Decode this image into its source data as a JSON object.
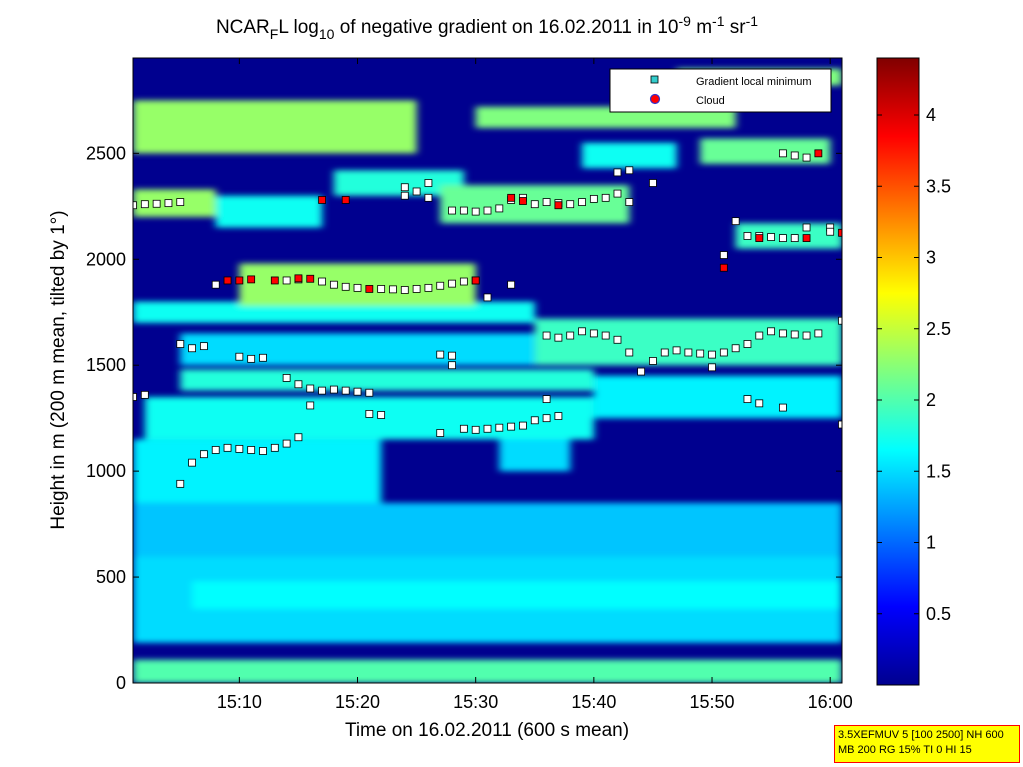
{
  "chart_data": {
    "type": "heatmap",
    "title": {
      "pre": "NCAR",
      "sub1": "F",
      "mid1": "L log",
      "sub2": "10",
      "mid2": " of negative gradient on 16.02.2011 in 10",
      "sup1": "-9",
      "mid3": " m",
      "sup2": "-1",
      "mid4": " sr",
      "sup3": "-1"
    },
    "xlabel": "Time on 16.02.2011 (600 s mean)",
    "ylabel": "Height in m (200 m mean, tilted by 1°)",
    "xlim": [
      "15:01",
      "16:01"
    ],
    "ylim": [
      0,
      2950
    ],
    "x_ticks": [
      "15:10",
      "15:20",
      "15:30",
      "15:40",
      "15:50",
      "16:00"
    ],
    "y_ticks": [
      "0",
      "500",
      "1000",
      "1500",
      "2000",
      "2500"
    ],
    "colorbar": {
      "range": [
        0,
        4.4
      ],
      "ticks": [
        "0.5",
        "1",
        "1.5",
        "2",
        "2.5",
        "3",
        "3.5",
        "4"
      ],
      "colormap": "jet"
    },
    "colors": {
      "background_field": "#00008f",
      "gradient_marker_fill": "#ffffff",
      "cloud_marker_fill": "#ff0000",
      "marker_edge": "#000000"
    },
    "legend": {
      "placement": "top-right",
      "entries": [
        {
          "label": "Gradient local minimum",
          "marker": "square",
          "color": "#33cccc"
        },
        {
          "label": "Cloud",
          "marker": "circle",
          "color": "#ff0000"
        }
      ]
    },
    "field_bands": [
      {
        "x": [
          "15:01",
          "16:01"
        ],
        "y": [
          0,
          110
        ],
        "level": 2.0
      },
      {
        "x": [
          "15:01",
          "16:01"
        ],
        "y": [
          190,
          600
        ],
        "level": 1.5
      },
      {
        "x": [
          "15:06",
          "16:01"
        ],
        "y": [
          350,
          480
        ],
        "level": 1.65
      },
      {
        "x": [
          "15:01",
          "16:01"
        ],
        "y": [
          600,
          850
        ],
        "level": 1.4
      },
      {
        "x": [
          "15:01",
          "15:22"
        ],
        "y": [
          850,
          1150
        ],
        "level": 1.6
      },
      {
        "x": [
          "15:32",
          "15:38"
        ],
        "y": [
          1000,
          1250
        ],
        "level": 1.5
      },
      {
        "x": [
          "15:02",
          "15:40"
        ],
        "y": [
          1150,
          1350
        ],
        "level": 1.7
      },
      {
        "x": [
          "15:05",
          "15:40"
        ],
        "y": [
          1380,
          1480
        ],
        "level": 1.8
      },
      {
        "x": [
          "15:40",
          "16:01"
        ],
        "y": [
          1250,
          1450
        ],
        "level": 1.6
      },
      {
        "x": [
          "15:05",
          "15:35"
        ],
        "y": [
          1500,
          1650
        ],
        "level": 1.5
      },
      {
        "x": [
          "15:35",
          "16:01"
        ],
        "y": [
          1500,
          1720
        ],
        "level": 1.9
      },
      {
        "x": [
          "15:01",
          "15:35"
        ],
        "y": [
          1700,
          1800
        ],
        "level": 1.7
      },
      {
        "x": [
          "15:10",
          "15:30"
        ],
        "y": [
          1780,
          1980
        ],
        "level": 2.3
      },
      {
        "x": [
          "15:01",
          "15:08"
        ],
        "y": [
          2200,
          2330
        ],
        "level": 2.3
      },
      {
        "x": [
          "15:08",
          "15:17"
        ],
        "y": [
          2150,
          2300
        ],
        "level": 1.7
      },
      {
        "x": [
          "15:18",
          "15:29"
        ],
        "y": [
          2300,
          2420
        ],
        "level": 1.8
      },
      {
        "x": [
          "15:27",
          "15:43"
        ],
        "y": [
          2170,
          2350
        ],
        "level": 2.1
      },
      {
        "x": [
          "15:52",
          "16:01"
        ],
        "y": [
          2050,
          2170
        ],
        "level": 1.9
      },
      {
        "x": [
          "15:01",
          "15:25"
        ],
        "y": [
          2500,
          2750
        ],
        "level": 2.3
      },
      {
        "x": [
          "15:30",
          "15:52"
        ],
        "y": [
          2620,
          2720
        ],
        "level": 2.2
      },
      {
        "x": [
          "15:39",
          "15:47"
        ],
        "y": [
          2430,
          2550
        ],
        "level": 1.7
      },
      {
        "x": [
          "15:49",
          "16:00"
        ],
        "y": [
          2450,
          2570
        ],
        "level": 2.1
      },
      {
        "x": [
          "15:47",
          "16:01"
        ],
        "y": [
          2820,
          2900
        ],
        "level": 2.2
      }
    ],
    "gradient_minimum_points": [
      {
        "x": "15:01",
        "y": 2255
      },
      {
        "x": "15:02",
        "y": 2260
      },
      {
        "x": "15:03",
        "y": 2262
      },
      {
        "x": "15:04",
        "y": 2265
      },
      {
        "x": "15:05",
        "y": 2270
      },
      {
        "x": "15:01",
        "y": 1350
      },
      {
        "x": "15:02",
        "y": 1360
      },
      {
        "x": "15:05",
        "y": 1600
      },
      {
        "x": "15:06",
        "y": 1580
      },
      {
        "x": "15:07",
        "y": 1590
      },
      {
        "x": "15:05",
        "y": 940
      },
      {
        "x": "15:06",
        "y": 1040
      },
      {
        "x": "15:07",
        "y": 1080
      },
      {
        "x": "15:08",
        "y": 1100
      },
      {
        "x": "15:09",
        "y": 1110
      },
      {
        "x": "15:10",
        "y": 1105
      },
      {
        "x": "15:11",
        "y": 1100
      },
      {
        "x": "15:12",
        "y": 1095
      },
      {
        "x": "15:13",
        "y": 1110
      },
      {
        "x": "15:14",
        "y": 1130
      },
      {
        "x": "15:15",
        "y": 1160
      },
      {
        "x": "15:08",
        "y": 1880
      },
      {
        "x": "15:10",
        "y": 1540
      },
      {
        "x": "15:11",
        "y": 1530
      },
      {
        "x": "15:12",
        "y": 1535
      },
      {
        "x": "15:14",
        "y": 1440
      },
      {
        "x": "15:15",
        "y": 1410
      },
      {
        "x": "15:16",
        "y": 1390
      },
      {
        "x": "15:17",
        "y": 1380
      },
      {
        "x": "15:18",
        "y": 1385
      },
      {
        "x": "15:19",
        "y": 1380
      },
      {
        "x": "15:20",
        "y": 1375
      },
      {
        "x": "15:21",
        "y": 1370
      },
      {
        "x": "15:16",
        "y": 1310
      },
      {
        "x": "15:21",
        "y": 1270
      },
      {
        "x": "15:22",
        "y": 1265
      },
      {
        "x": "15:14",
        "y": 1900
      },
      {
        "x": "15:15",
        "y": 1905
      },
      {
        "x": "15:17",
        "y": 1895
      },
      {
        "x": "15:18",
        "y": 1880
      },
      {
        "x": "15:19",
        "y": 1870
      },
      {
        "x": "15:20",
        "y": 1865
      },
      {
        "x": "15:22",
        "y": 1860
      },
      {
        "x": "15:23",
        "y": 1858
      },
      {
        "x": "15:24",
        "y": 1855
      },
      {
        "x": "15:25",
        "y": 1860
      },
      {
        "x": "15:26",
        "y": 1865
      },
      {
        "x": "15:27",
        "y": 1875
      },
      {
        "x": "15:28",
        "y": 1885
      },
      {
        "x": "15:29",
        "y": 1895
      },
      {
        "x": "15:30",
        "y": 1900
      },
      {
        "x": "15:31",
        "y": 1820
      },
      {
        "x": "15:33",
        "y": 1880
      },
      {
        "x": "15:27",
        "y": 1550
      },
      {
        "x": "15:28",
        "y": 1545
      },
      {
        "x": "15:28",
        "y": 1500
      },
      {
        "x": "15:27",
        "y": 1180
      },
      {
        "x": "15:29",
        "y": 1200
      },
      {
        "x": "15:30",
        "y": 1195
      },
      {
        "x": "15:31",
        "y": 1200
      },
      {
        "x": "15:32",
        "y": 1205
      },
      {
        "x": "15:33",
        "y": 1210
      },
      {
        "x": "15:34",
        "y": 1215
      },
      {
        "x": "15:35",
        "y": 1240
      },
      {
        "x": "15:36",
        "y": 1250
      },
      {
        "x": "15:37",
        "y": 1260
      },
      {
        "x": "15:36",
        "y": 1340
      },
      {
        "x": "15:36",
        "y": 1640
      },
      {
        "x": "15:37",
        "y": 1630
      },
      {
        "x": "15:38",
        "y": 1640
      },
      {
        "x": "15:39",
        "y": 1660
      },
      {
        "x": "15:40",
        "y": 1650
      },
      {
        "x": "15:41",
        "y": 1640
      },
      {
        "x": "15:42",
        "y": 1620
      },
      {
        "x": "15:43",
        "y": 1560
      },
      {
        "x": "15:44",
        "y": 1470
      },
      {
        "x": "15:45",
        "y": 1520
      },
      {
        "x": "15:46",
        "y": 1560
      },
      {
        "x": "15:47",
        "y": 1570
      },
      {
        "x": "15:48",
        "y": 1560
      },
      {
        "x": "15:49",
        "y": 1555
      },
      {
        "x": "15:50",
        "y": 1550
      },
      {
        "x": "15:51",
        "y": 1560
      },
      {
        "x": "15:52",
        "y": 1580
      },
      {
        "x": "15:53",
        "y": 1600
      },
      {
        "x": "15:54",
        "y": 1640
      },
      {
        "x": "15:55",
        "y": 1660
      },
      {
        "x": "15:56",
        "y": 1650
      },
      {
        "x": "15:57",
        "y": 1645
      },
      {
        "x": "15:58",
        "y": 1640
      },
      {
        "x": "15:59",
        "y": 1650
      },
      {
        "x": "16:01",
        "y": 1710
      },
      {
        "x": "16:01",
        "y": 1220
      },
      {
        "x": "15:50",
        "y": 1490
      },
      {
        "x": "15:53",
        "y": 1340
      },
      {
        "x": "15:54",
        "y": 1320
      },
      {
        "x": "15:56",
        "y": 1300
      },
      {
        "x": "15:24",
        "y": 2340
      },
      {
        "x": "15:25",
        "y": 2320
      },
      {
        "x": "15:26",
        "y": 2290
      },
      {
        "x": "15:24",
        "y": 2300
      },
      {
        "x": "15:26",
        "y": 2360
      },
      {
        "x": "15:28",
        "y": 2230
      },
      {
        "x": "15:29",
        "y": 2230
      },
      {
        "x": "15:30",
        "y": 2225
      },
      {
        "x": "15:31",
        "y": 2230
      },
      {
        "x": "15:32",
        "y": 2240
      },
      {
        "x": "15:33",
        "y": 2280
      },
      {
        "x": "15:34",
        "y": 2290
      },
      {
        "x": "15:35",
        "y": 2260
      },
      {
        "x": "15:36",
        "y": 2270
      },
      {
        "x": "15:37",
        "y": 2265
      },
      {
        "x": "15:38",
        "y": 2260
      },
      {
        "x": "15:39",
        "y": 2270
      },
      {
        "x": "15:40",
        "y": 2285
      },
      {
        "x": "15:41",
        "y": 2290
      },
      {
        "x": "15:42",
        "y": 2310
      },
      {
        "x": "15:43",
        "y": 2270
      },
      {
        "x": "15:42",
        "y": 2410
      },
      {
        "x": "15:43",
        "y": 2420
      },
      {
        "x": "15:45",
        "y": 2360
      },
      {
        "x": "15:52",
        "y": 2180
      },
      {
        "x": "15:53",
        "y": 2110
      },
      {
        "x": "15:54",
        "y": 2110
      },
      {
        "x": "15:55",
        "y": 2105
      },
      {
        "x": "15:56",
        "y": 2100
      },
      {
        "x": "15:57",
        "y": 2100
      },
      {
        "x": "15:58",
        "y": 2150
      },
      {
        "x": "16:00",
        "y": 2150
      },
      {
        "x": "16:00",
        "y": 2130
      },
      {
        "x": "15:51",
        "y": 2020
      },
      {
        "x": "15:56",
        "y": 2500
      },
      {
        "x": "15:57",
        "y": 2490
      },
      {
        "x": "15:58",
        "y": 2480
      }
    ],
    "cloud_points": [
      {
        "x": "15:09",
        "y": 1900
      },
      {
        "x": "15:10",
        "y": 1900
      },
      {
        "x": "15:11",
        "y": 1905
      },
      {
        "x": "15:13",
        "y": 1900
      },
      {
        "x": "15:15",
        "y": 1910
      },
      {
        "x": "15:16",
        "y": 1908
      },
      {
        "x": "15:21",
        "y": 1860
      },
      {
        "x": "15:17",
        "y": 2280
      },
      {
        "x": "15:19",
        "y": 2280
      },
      {
        "x": "15:30",
        "y": 1900
      },
      {
        "x": "15:33",
        "y": 2290
      },
      {
        "x": "15:34",
        "y": 2275
      },
      {
        "x": "15:37",
        "y": 2255
      },
      {
        "x": "15:51",
        "y": 1960
      },
      {
        "x": "15:54",
        "y": 2100
      },
      {
        "x": "15:58",
        "y": 2100
      },
      {
        "x": "16:01",
        "y": 2125
      },
      {
        "x": "15:59",
        "y": 2500
      }
    ]
  },
  "info_box": {
    "line1": "3.5XEFMUV 5 [100 2500] NH 600",
    "line2": "MB 200 RG 15% TI 0 HI 15"
  }
}
